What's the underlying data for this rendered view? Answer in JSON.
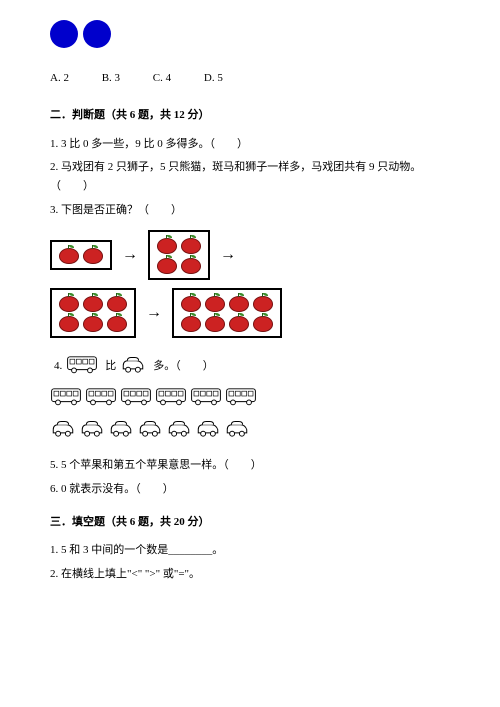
{
  "circles": {
    "count": 2,
    "color": "#0000cc"
  },
  "mc_options": {
    "a": "A. 2",
    "b": "B. 3",
    "c": "C. 4",
    "d": "D. 5"
  },
  "section2": {
    "header": "二．判断题（共 6 题，共 12 分）",
    "q1": "1. 3 比 0 多一些，9 比 0 多得多。（　　）",
    "q2": "2. 马戏团有 2 只狮子，5 只熊猫，斑马和狮子一样多，马戏团共有 9 只动物。（　　）",
    "q3": "3. 下图是否正确？（　　）",
    "q4_prefix": "4.",
    "q4_mid": "比",
    "q4_suffix": "多。（　　）",
    "q5": "5. 5 个苹果和第五个苹果意思一样。（　　）",
    "q6": "6. 0 就表示没有。（　　）"
  },
  "apple_diagram": {
    "apple_color": "#cc2222",
    "box_tl": 2,
    "box_tr_rows": [
      2,
      2
    ],
    "box_bl_rows": [
      3,
      3
    ],
    "box_br_rows": [
      4,
      4
    ]
  },
  "vehicles": {
    "q4_bus": 1,
    "q4_car": 1,
    "buses_count": 6,
    "cars_count": 7
  },
  "section3": {
    "header": "三．填空题（共 6 题，共 20 分）",
    "q1": "1. 5 和 3 中间的一个数是________。",
    "q2": "2. 在横线上填上\"<\" \">\" 或\"=\"。"
  }
}
